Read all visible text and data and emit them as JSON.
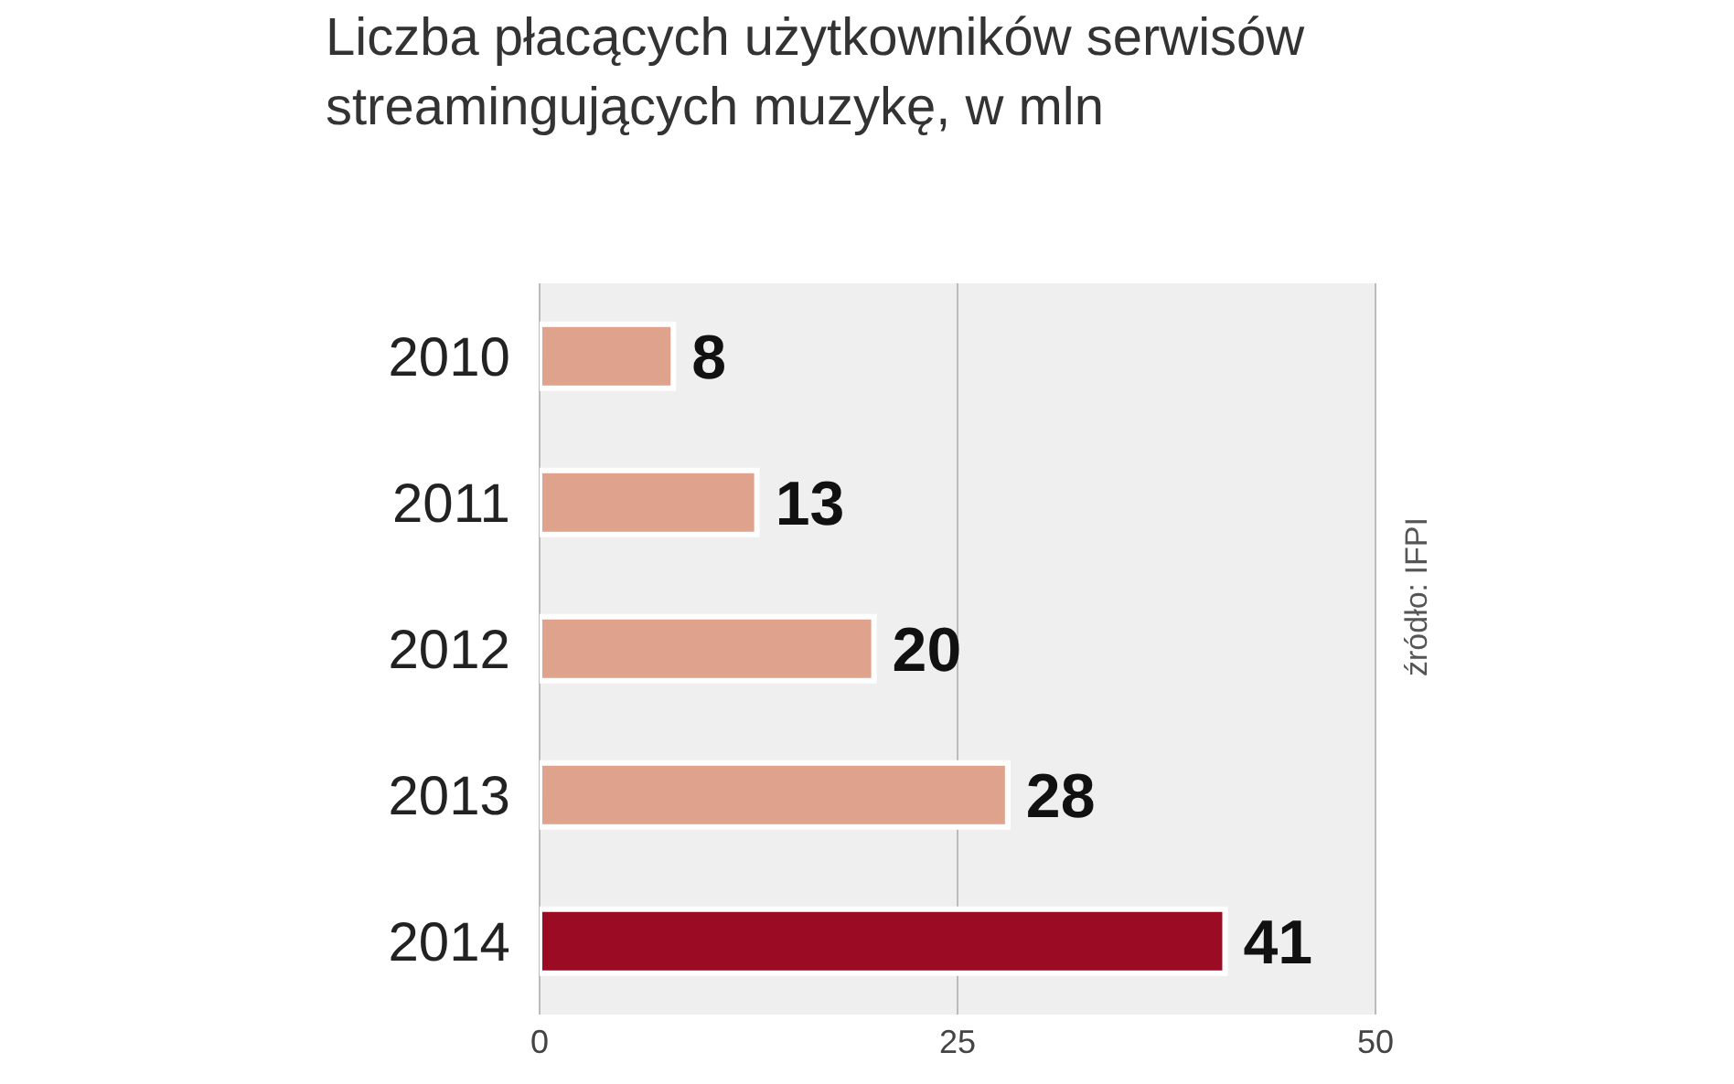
{
  "chart_data": {
    "type": "bar",
    "orientation": "horizontal",
    "title": "Liczba płacących użytkowników serwisów streamingujących muzykę, w mln",
    "categories": [
      "2010",
      "2011",
      "2012",
      "2013",
      "2014"
    ],
    "values": [
      8,
      13,
      20,
      28,
      41
    ],
    "colors": [
      "#dfa28c",
      "#dfa28c",
      "#dfa28c",
      "#dfa28c",
      "#9c0b24"
    ],
    "xlim": [
      0,
      50
    ],
    "xticks": [
      0,
      25,
      50
    ],
    "grid": "x",
    "data_labels": true,
    "annotations": [
      "źródło: IFPI"
    ]
  }
}
